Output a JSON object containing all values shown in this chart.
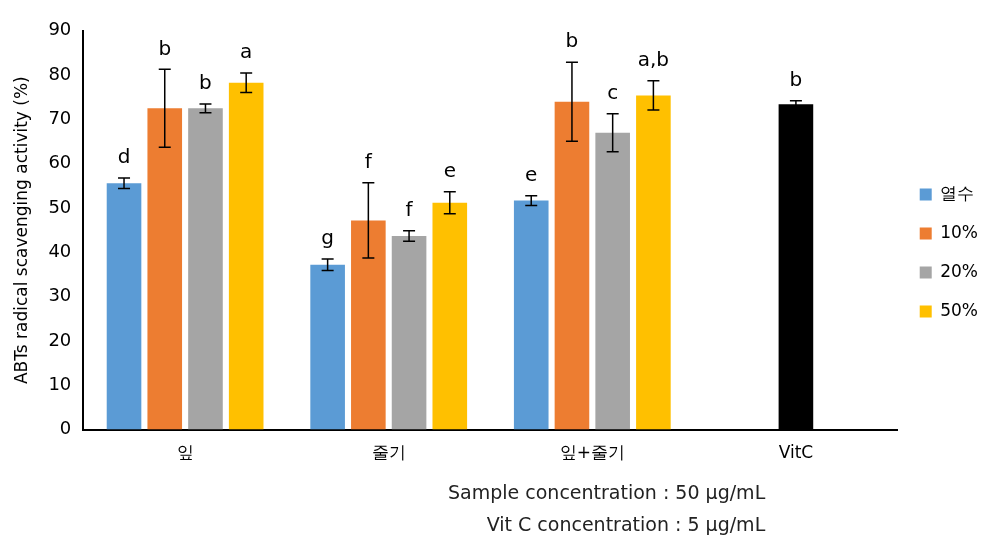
{
  "chart_data": {
    "type": "bar",
    "ylabel": "ABTs radical scavenging activity (%)",
    "categories": [
      "잎",
      "줄기",
      "잎+줄기",
      "VitC"
    ],
    "series": [
      {
        "name": "열수",
        "color": "#5b9bd5",
        "values": [
          55.6,
          37.2,
          51.7,
          null
        ],
        "errors": [
          1.2,
          1.3,
          1.1,
          null
        ],
        "value_labels": [
          "d",
          "g",
          "e",
          null
        ]
      },
      {
        "name": "10%",
        "color": "#ed7d31",
        "values": [
          72.5,
          47.2,
          74.0,
          null
        ],
        "errors": [
          8.8,
          8.5,
          8.9,
          null
        ],
        "value_labels": [
          "b",
          "f",
          "b",
          null
        ]
      },
      {
        "name": "20%",
        "color": "#a5a5a5",
        "values": [
          72.5,
          43.7,
          67.0,
          null
        ],
        "errors": [
          1.0,
          1.2,
          4.3,
          null
        ],
        "value_labels": [
          "b",
          "f",
          "c",
          null
        ]
      },
      {
        "name": "50%",
        "color": "#ffc000",
        "values": [
          78.3,
          51.2,
          75.4,
          null
        ],
        "errors": [
          2.2,
          2.5,
          3.3,
          null
        ],
        "value_labels": [
          "a",
          "e",
          "a,b",
          null
        ]
      },
      {
        "color": "#000000",
        "values": [
          null,
          null,
          null,
          73.4
        ],
        "errors": [
          null,
          null,
          null,
          0.8
        ],
        "value_labels": [
          null,
          null,
          null,
          "b"
        ]
      }
    ],
    "ylim": [
      0,
      90
    ],
    "yticks": [
      0,
      10,
      20,
      30,
      40,
      50,
      60,
      70,
      80,
      90
    ],
    "grid": false,
    "legend": "right",
    "annotations": [
      "Sample concentration : 50 µg/mL",
      "Vit C concentration :  5 µg/mL"
    ]
  }
}
